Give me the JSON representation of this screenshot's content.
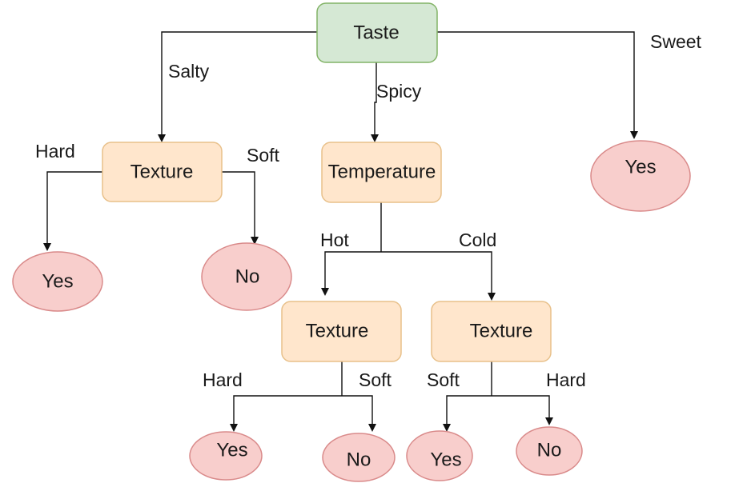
{
  "colors": {
    "root_fill": "#d5e8d4",
    "root_stroke": "#82b366",
    "attr_fill": "#ffe6cc",
    "attr_stroke": "#e8c08a",
    "leaf_fill": "#f8cecc",
    "leaf_stroke": "#d98a8a"
  },
  "nodes": {
    "taste": "Taste",
    "texture_salty": "Texture",
    "temperature": "Temperature",
    "yes_sweet": "Yes",
    "yes_salty_hard": "Yes",
    "no_salty_soft": "No",
    "texture_hot": "Texture",
    "texture_cold": "Texture",
    "yes_hot_hard": "Yes",
    "no_hot_soft": "No",
    "yes_cold_soft": "Yes",
    "no_cold_hard": "No"
  },
  "edges": {
    "salty": "Salty",
    "spicy": "Spicy",
    "sweet": "Sweet",
    "hard_1": "Hard",
    "soft_1": "Soft",
    "hot": "Hot",
    "cold": "Cold",
    "hard_2": "Hard",
    "soft_2": "Soft",
    "soft_3": "Soft",
    "hard_3": "Hard"
  }
}
